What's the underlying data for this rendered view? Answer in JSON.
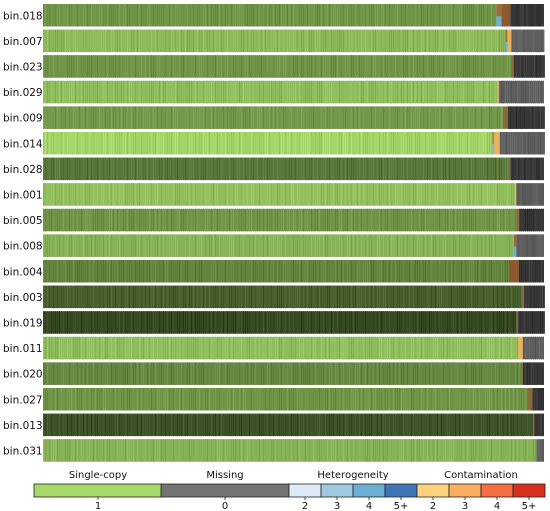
{
  "chart_data": {
    "type": "heatmap",
    "title": "",
    "xlabel": "",
    "ylabel": "",
    "bins": [
      {
        "name": "bin.018",
        "single_copy": 0.905,
        "heterogeneity": 0.01,
        "contamination": 0.018,
        "missing": 0.067,
        "shade": 0.62
      },
      {
        "name": "bin.007",
        "single_copy": 0.924,
        "heterogeneity": 0.003,
        "contamination": 0.008,
        "missing": 0.065,
        "shade": 0.82
      },
      {
        "name": "bin.023",
        "single_copy": 0.935,
        "heterogeneity": 0.0,
        "contamination": 0.005,
        "missing": 0.06,
        "shade": 0.62
      },
      {
        "name": "bin.029",
        "single_copy": 0.907,
        "heterogeneity": 0.0,
        "contamination": 0.003,
        "missing": 0.09,
        "shade": 0.85
      },
      {
        "name": "bin.009",
        "single_copy": 0.918,
        "heterogeneity": 0.0,
        "contamination": 0.01,
        "missing": 0.072,
        "shade": 0.64
      },
      {
        "name": "bin.014",
        "single_copy": 0.897,
        "heterogeneity": 0.003,
        "contamination": 0.012,
        "missing": 0.088,
        "shade": 0.98
      },
      {
        "name": "bin.028",
        "single_copy": 0.93,
        "heterogeneity": 0.0,
        "contamination": 0.003,
        "missing": 0.067,
        "shade": 0.45
      },
      {
        "name": "bin.001",
        "single_copy": 0.942,
        "heterogeneity": 0.0,
        "contamination": 0.003,
        "missing": 0.055,
        "shade": 0.86
      },
      {
        "name": "bin.005",
        "single_copy": 0.945,
        "heterogeneity": 0.0,
        "contamination": 0.005,
        "missing": 0.05,
        "shade": 0.62
      },
      {
        "name": "bin.008",
        "single_copy": 0.94,
        "heterogeneity": 0.005,
        "contamination": 0.0,
        "missing": 0.055,
        "shade": 0.78
      },
      {
        "name": "bin.004",
        "single_copy": 0.93,
        "heterogeneity": 0.0,
        "contamination": 0.02,
        "missing": 0.05,
        "shade": 0.52
      },
      {
        "name": "bin.003",
        "single_copy": 0.955,
        "heterogeneity": 0.0,
        "contamination": 0.005,
        "missing": 0.04,
        "shade": 0.32
      },
      {
        "name": "bin.019",
        "single_copy": 0.945,
        "heterogeneity": 0.0,
        "contamination": 0.003,
        "missing": 0.052,
        "shade": 0.2
      },
      {
        "name": "bin.011",
        "single_copy": 0.948,
        "heterogeneity": 0.0,
        "contamination": 0.01,
        "missing": 0.042,
        "shade": 0.85
      },
      {
        "name": "bin.020",
        "single_copy": 0.955,
        "heterogeneity": 0.0,
        "contamination": 0.003,
        "missing": 0.042,
        "shade": 0.55
      },
      {
        "name": "bin.027",
        "single_copy": 0.967,
        "heterogeneity": 0.0,
        "contamination": 0.01,
        "missing": 0.023,
        "shade": 0.62
      },
      {
        "name": "bin.013",
        "single_copy": 0.978,
        "heterogeneity": 0.0,
        "contamination": 0.003,
        "missing": 0.019,
        "shade": 0.25
      },
      {
        "name": "bin.031",
        "single_copy": 0.985,
        "heterogeneity": 0.0,
        "contamination": 0.0,
        "missing": 0.015,
        "shade": 0.78
      }
    ],
    "legend": [
      {
        "title": "Single-copy",
        "ticks": [
          "1"
        ],
        "colors": [
          "#a6d96a"
        ]
      },
      {
        "title": "Missing",
        "ticks": [
          "0"
        ],
        "colors": [
          "#737373"
        ]
      },
      {
        "title": "Heterogeneity",
        "ticks": [
          "2",
          "3",
          "4",
          "5+"
        ],
        "colors": [
          "#deebf7",
          "#9ecae1",
          "#6baed6",
          "#3d77b8"
        ]
      },
      {
        "title": "Contamination",
        "ticks": [
          "2",
          "3",
          "4",
          "5+"
        ],
        "colors": [
          "#fdd27f",
          "#fdae61",
          "#f46d43",
          "#d7301f"
        ]
      }
    ]
  }
}
